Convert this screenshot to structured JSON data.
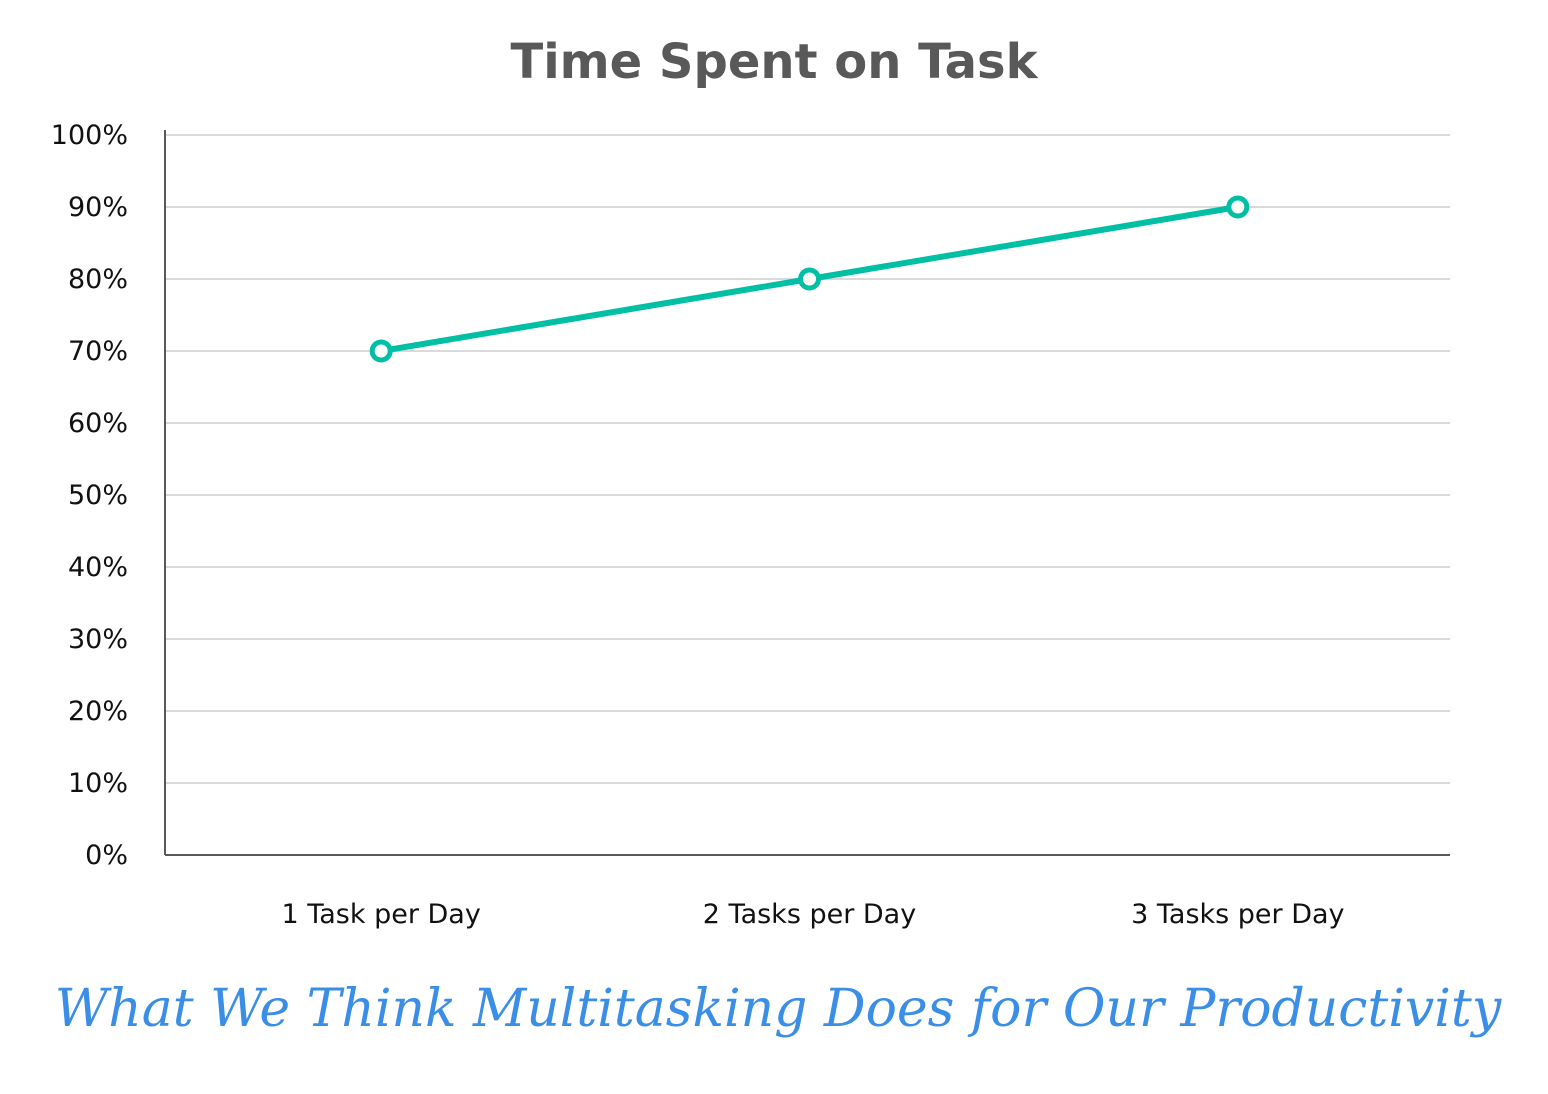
{
  "chart_data": {
    "type": "line",
    "title": "Time Spent on Task",
    "subtitle": "What We Think Multitasking Does for Our Productivity",
    "categories": [
      "1 Task per Day",
      "2 Tasks per Day",
      "3 Tasks per Day"
    ],
    "series": [
      {
        "values": [
          70,
          80,
          90
        ]
      }
    ],
    "ylim": [
      0,
      100
    ],
    "yticks": [
      "0%",
      "10%",
      "20%",
      "30%",
      "40%",
      "50%",
      "60%",
      "70%",
      "80%",
      "90%",
      "100%"
    ],
    "grid": true,
    "legend": "none",
    "colors": {
      "line": "#00BFA5",
      "grid": "#D9D9D9",
      "axis": "#595959",
      "title": "#595959",
      "caption": "#3A8EE6"
    }
  }
}
